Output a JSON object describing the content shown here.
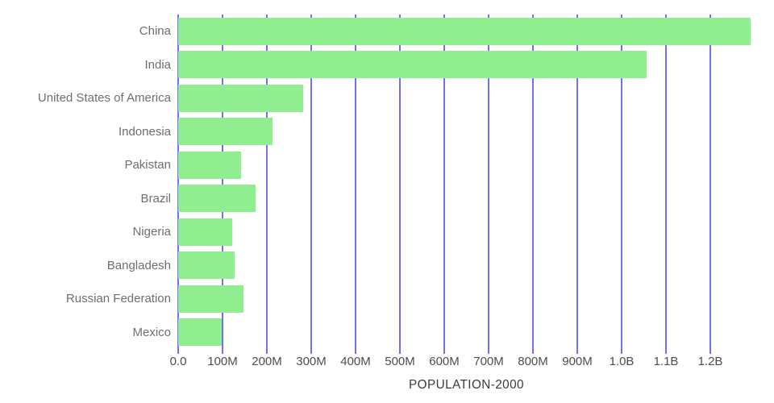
{
  "chart_data": {
    "type": "bar",
    "orientation": "horizontal",
    "title": "POPULATION-2000",
    "units": "people (millions)",
    "categories": [
      "China",
      "India",
      "United States of America",
      "Indonesia",
      "Pakistan",
      "Brazil",
      "Nigeria",
      "Bangladesh",
      "Russian Federation",
      "Mexico"
    ],
    "values_millions": [
      1290,
      1057,
      282,
      212,
      142,
      175,
      122,
      128,
      147,
      99
    ],
    "x_ticks": [
      "0.0",
      "100M",
      "200M",
      "300M",
      "400M",
      "500M",
      "600M",
      "700M",
      "800M",
      "900M",
      "1.0B",
      "1.1B",
      "1.2B"
    ],
    "x_tick_values_millions": [
      0,
      100,
      200,
      300,
      400,
      500,
      600,
      700,
      800,
      900,
      1000,
      1100,
      1200
    ],
    "xlim_millions": [
      0,
      1300
    ],
    "grid": "vertical-gridlines-on",
    "legend": "none",
    "colors": {
      "bar": "#90EE90",
      "gridline": "#7370F1",
      "category_label": "#6e6e6e",
      "tick_label": "#4d4d4d",
      "title": "#3a3a3a",
      "background": "#ffffff"
    }
  }
}
